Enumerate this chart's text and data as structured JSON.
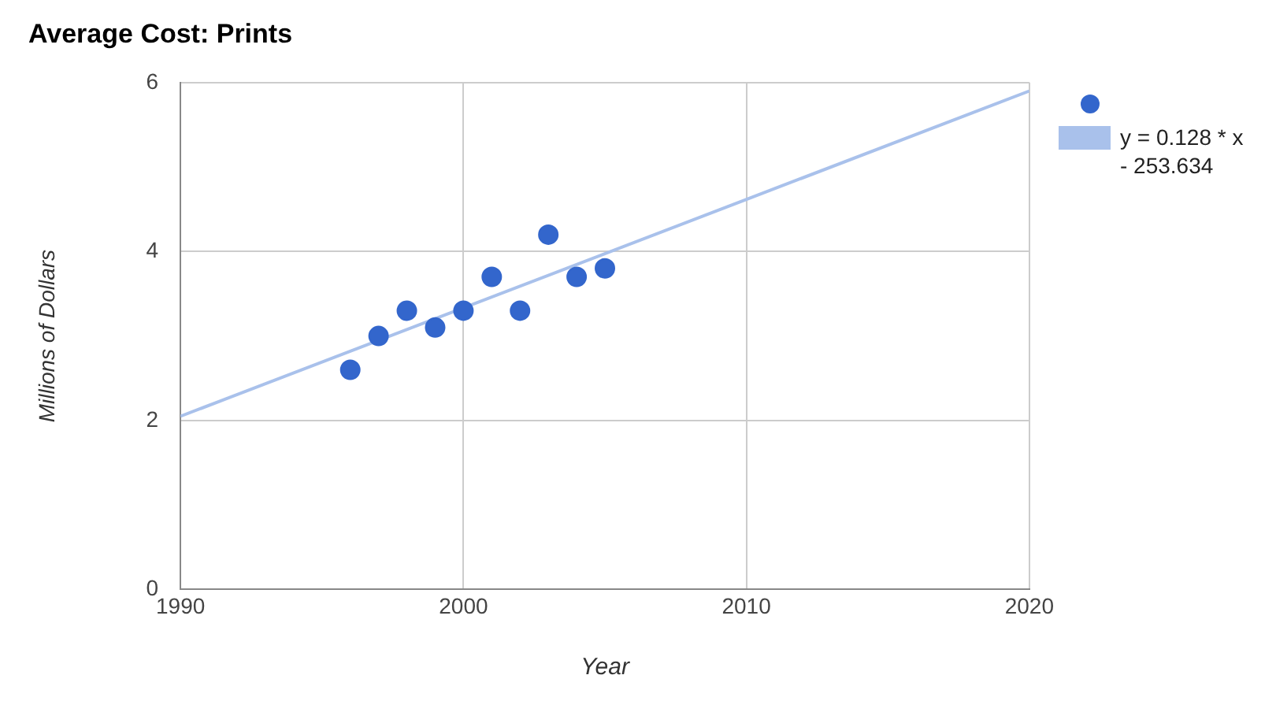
{
  "chart_data": {
    "type": "scatter",
    "title": "Average Cost: Prints",
    "xlabel": "Year",
    "ylabel": "Millions of Dollars",
    "x": [
      1996,
      1997,
      1998,
      1999,
      2000,
      2001,
      2002,
      2003,
      2004,
      2005
    ],
    "series": [
      {
        "color": "#3366cc",
        "marker": "circle",
        "values": [
          2.6,
          3.0,
          3.3,
          3.1,
          3.3,
          3.7,
          3.3,
          4.2,
          3.7,
          3.8
        ]
      },
      {
        "type": "line",
        "name": "y = 0.128 * x - 253.634",
        "color": "#a9c1eb",
        "x": [
          1990,
          2020
        ],
        "values": [
          2.05,
          5.9
        ]
      }
    ],
    "xlim": [
      1990,
      2020
    ],
    "xticks": [
      1990,
      2000,
      2010,
      2020
    ],
    "ylim": [
      0,
      6
    ],
    "yticks": [
      0,
      2,
      4,
      6
    ],
    "grid": true,
    "legend": "top right"
  }
}
